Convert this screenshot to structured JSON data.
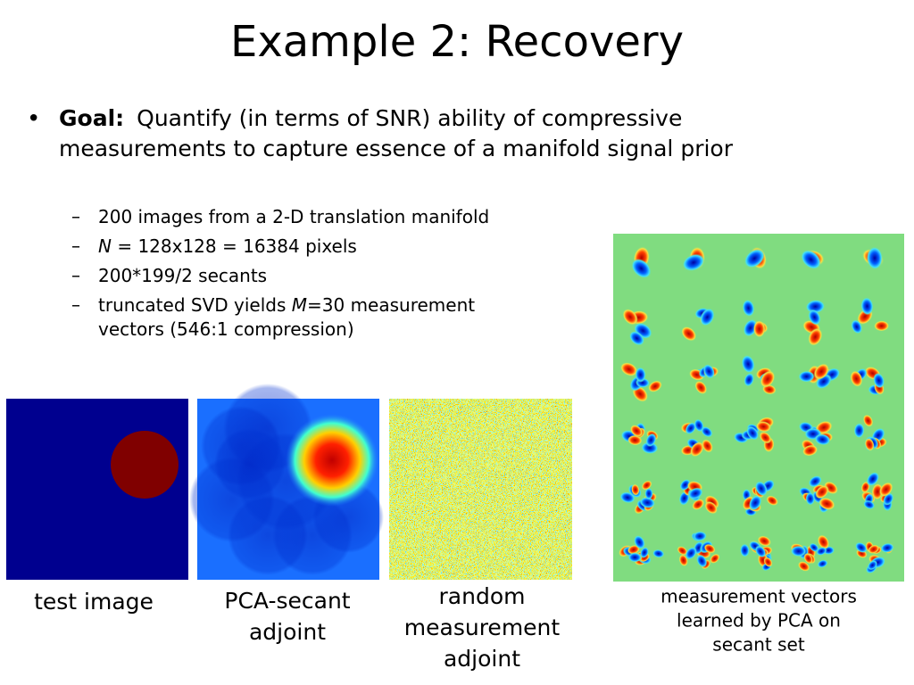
{
  "title": "Example 2: Recovery",
  "bullet": {
    "label": "Goal:",
    "lines": [
      "Quantify (in terms of SNR) ability of compressive",
      "measurements to capture essence of a manifold signal prior"
    ]
  },
  "sub_bullets": [
    [
      {
        "text": "200 images from a 2-D translation manifold"
      }
    ],
    [
      {
        "text": "N",
        "italic": true
      },
      {
        "text": " = 128x128 = 16384 pixels"
      }
    ],
    [
      {
        "text": "200*199/2 secants"
      }
    ],
    [
      {
        "text": "truncated SVD yields "
      },
      {
        "text": "M",
        "italic": true
      },
      {
        "text": "=30 measurement"
      }
    ],
    [
      {
        "text": "vectors (546:1 compression)"
      }
    ]
  ],
  "captions": [
    [
      "test image"
    ],
    [
      "PCA-secant",
      "adjoint"
    ],
    [
      "random",
      "measurement",
      "adjoint"
    ],
    [
      "measurement vectors",
      "learned by PCA on",
      "secant set"
    ]
  ]
}
